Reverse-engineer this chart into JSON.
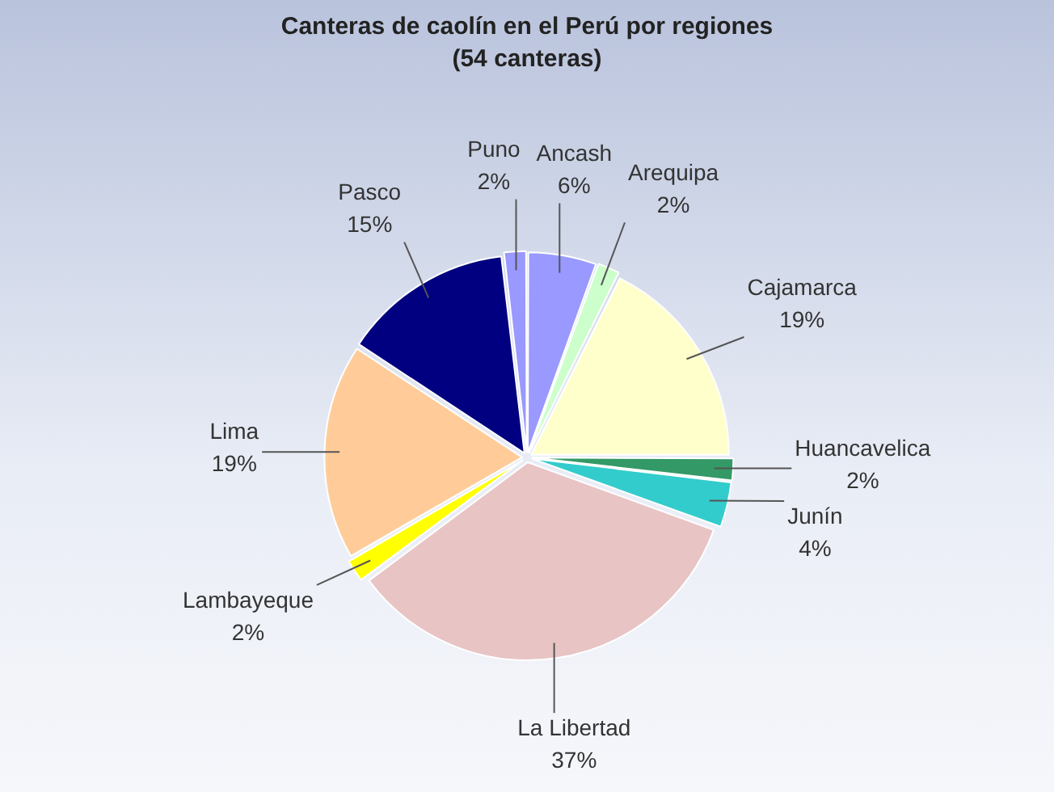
{
  "chart_data": {
    "type": "pie",
    "title": "Canteras de caolín en el Perú por regiones",
    "subtitle": "(54 canteras)",
    "categories": [
      "Ancash",
      "Arequipa",
      "Cajamarca",
      "Huancavelica",
      "Junín",
      "La Libertad",
      "Lambayeque",
      "Lima",
      "Pasco",
      "Puno"
    ],
    "values": [
      6,
      2,
      19,
      2,
      4,
      37,
      2,
      19,
      15,
      2
    ],
    "value_labels": [
      "6%",
      "2%",
      "19%",
      "2%",
      "4%",
      "37%",
      "2%",
      "19%",
      "15%",
      "2%"
    ],
    "colors": [
      "#9999ff",
      "#ccffcc",
      "#ffffcc",
      "#339966",
      "#33cccc",
      "#e8c4c4",
      "#ffff00",
      "#ffcc99",
      "#000080",
      "#9999ff"
    ],
    "legend": false
  }
}
